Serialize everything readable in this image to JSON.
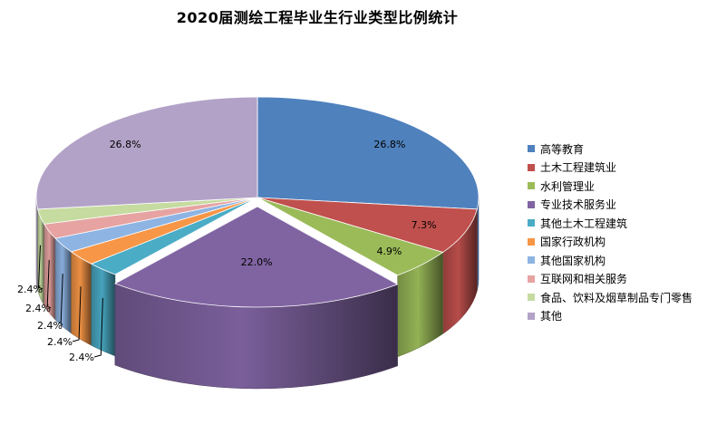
{
  "chart_data": {
    "type": "pie",
    "title": "2020届测绘工程毕业生行业类型比例统计",
    "categories": [
      "高等教育",
      "土木工程建筑业",
      "水利管理业",
      "专业技术服务业",
      "其他土木工程建筑",
      "国家行政机构",
      "其他国家机构",
      "互联网和相关服务",
      "食品、饮料及烟草制品专门零售",
      "其他"
    ],
    "values": [
      26.8,
      7.3,
      4.9,
      22.0,
      2.4,
      2.4,
      2.4,
      2.4,
      2.4,
      26.8
    ],
    "labels": [
      "26.8%",
      "7.3%",
      "4.9%",
      "22.0%",
      "2.4%",
      "2.4%",
      "2.4%",
      "2.4%",
      "2.4%",
      "26.8%"
    ],
    "colors": [
      "#4F81BD",
      "#C0504D",
      "#9BBB59",
      "#8064A2",
      "#4BACC6",
      "#F79646",
      "#8EB4E3",
      "#E6A3A1",
      "#C6DBA0",
      "#B3A2C7"
    ],
    "legend_position": "right",
    "style": "3d-exploded-pie"
  }
}
